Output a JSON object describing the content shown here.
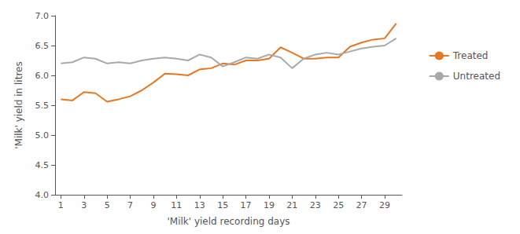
{
  "chart_data": {
    "type": "line",
    "xlabel": "'Milk' yield recording days",
    "ylabel": "'Milk' yield in litres",
    "x": [
      1,
      2,
      3,
      4,
      5,
      6,
      7,
      8,
      9,
      10,
      11,
      12,
      13,
      14,
      15,
      16,
      17,
      18,
      19,
      20,
      21,
      22,
      23,
      24,
      25,
      26,
      27,
      28,
      29,
      30
    ],
    "series": [
      {
        "name": "Treated",
        "color": "#E87722",
        "values": [
          5.6,
          5.58,
          5.72,
          5.7,
          5.56,
          5.6,
          5.65,
          5.75,
          5.88,
          6.03,
          6.02,
          6.0,
          6.1,
          6.12,
          6.2,
          6.18,
          6.25,
          6.25,
          6.28,
          6.47,
          6.38,
          6.28,
          6.28,
          6.3,
          6.3,
          6.48,
          6.55,
          6.6,
          6.62,
          6.87
        ]
      },
      {
        "name": "Untreated",
        "color": "#A9A9A9",
        "values": [
          6.2,
          6.22,
          6.3,
          6.28,
          6.2,
          6.22,
          6.2,
          6.25,
          6.28,
          6.3,
          6.28,
          6.25,
          6.35,
          6.3,
          6.15,
          6.22,
          6.3,
          6.28,
          6.35,
          6.3,
          6.12,
          6.28,
          6.35,
          6.38,
          6.35,
          6.4,
          6.45,
          6.48,
          6.5,
          6.62
        ]
      }
    ],
    "xlim": [
      0.5,
      30.5
    ],
    "xticks": [
      1,
      3,
      5,
      7,
      9,
      11,
      13,
      15,
      17,
      19,
      21,
      23,
      25,
      27,
      29
    ],
    "ylim": [
      4.0,
      7.0
    ],
    "yticks": [
      {
        "value": 4.0,
        "label": "4.0"
      },
      4.5,
      {
        "value": 5.0,
        "label": "5.0"
      },
      5.5,
      {
        "value": 6.0,
        "label": "6.0"
      },
      6.5,
      {
        "value": 7.0,
        "label": "7.0"
      }
    ],
    "grid": false,
    "legend": "right"
  }
}
